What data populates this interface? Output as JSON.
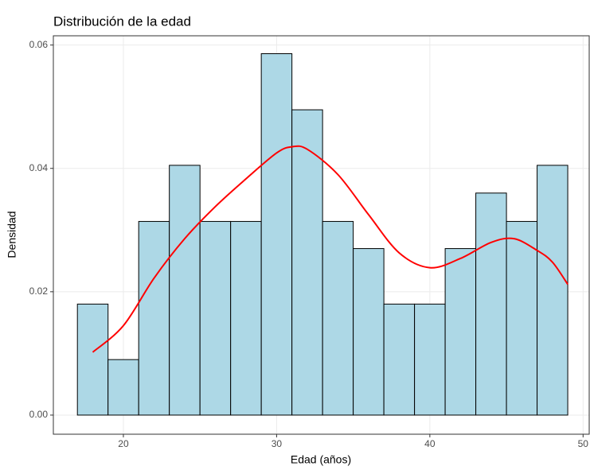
{
  "chart_data": {
    "type": "histogram",
    "title": "Distribución de la edad",
    "xlabel": "Edad (años)",
    "ylabel": "Densidad",
    "bins": [
      17,
      19,
      21,
      23,
      25,
      27,
      29,
      31,
      33,
      35,
      37,
      39,
      41,
      43,
      45,
      47,
      49
    ],
    "values": [
      0.018,
      0.009,
      0.0314,
      0.0405,
      0.0314,
      0.0314,
      0.0586,
      0.0495,
      0.0314,
      0.027,
      0.018,
      0.018,
      0.027,
      0.036,
      0.0314,
      0.0405
    ],
    "color": "#add8e6",
    "edgecolor": "#000000",
    "density": {
      "color": "#ff0000",
      "x": [
        18,
        20,
        22,
        24,
        26,
        28,
        30,
        31,
        32,
        34,
        36,
        38,
        40,
        42,
        44,
        45.5,
        47,
        48,
        49
      ],
      "values": [
        0.0102,
        0.0145,
        0.0222,
        0.0286,
        0.0338,
        0.0383,
        0.0425,
        0.0435,
        0.0431,
        0.039,
        0.0325,
        0.0263,
        0.0239,
        0.0254,
        0.028,
        0.0286,
        0.0267,
        0.0248,
        0.0212
      ]
    },
    "xlim": [
      15.43,
      50.4
    ],
    "ylim": [
      -0.0031,
      0.0615
    ],
    "xticks": [
      20,
      30,
      40,
      50
    ],
    "yticks": [
      {
        "value": 0,
        "label": "0.00"
      },
      {
        "value": 0.02,
        "label": "0.02"
      },
      {
        "value": 0.04,
        "label": "0.04"
      },
      {
        "value": 0.06,
        "label": "0.06"
      }
    ],
    "grid": true
  }
}
